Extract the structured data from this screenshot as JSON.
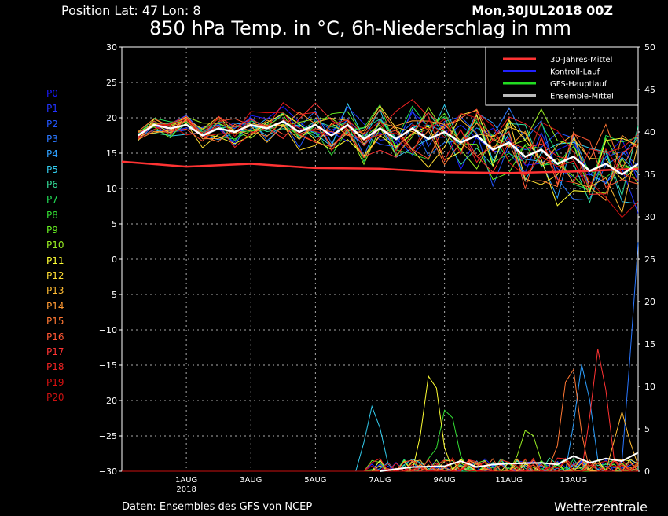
{
  "header": {
    "position": "Position  Lat: 47 Lon: 8",
    "date": "Mon,30JUL2018 00Z",
    "title": "850 hPa Temp. in °C, 6h-Niederschlag in mm"
  },
  "footer": {
    "source": "Daten: Ensembles des GFS von NCEP",
    "brand": "Wetterzentrale"
  },
  "members": [
    {
      "label": "P0",
      "color": "#1a1aff"
    },
    {
      "label": "P1",
      "color": "#2233ff"
    },
    {
      "label": "P2",
      "color": "#2255ff"
    },
    {
      "label": "P3",
      "color": "#2a77ff"
    },
    {
      "label": "P4",
      "color": "#2ea0ff"
    },
    {
      "label": "P5",
      "color": "#33ccee"
    },
    {
      "label": "P6",
      "color": "#33dd99"
    },
    {
      "label": "P7",
      "color": "#22dd55"
    },
    {
      "label": "P8",
      "color": "#33dd33"
    },
    {
      "label": "P9",
      "color": "#66ee22"
    },
    {
      "label": "P10",
      "color": "#99ee22"
    },
    {
      "label": "P11",
      "color": "#ffff33"
    },
    {
      "label": "P12",
      "color": "#ffdd33"
    },
    {
      "label": "P13",
      "color": "#ffbb33"
    },
    {
      "label": "P14",
      "color": "#ff9933"
    },
    {
      "label": "P15",
      "color": "#ff7733"
    },
    {
      "label": "P16",
      "color": "#ff5533"
    },
    {
      "label": "P17",
      "color": "#ff3333"
    },
    {
      "label": "P18",
      "color": "#ee2222"
    },
    {
      "label": "P19",
      "color": "#dd1111"
    },
    {
      "label": "P20",
      "color": "#cc1111"
    }
  ],
  "chart_data": {
    "type": "line",
    "x_ticks": [
      {
        "day": 2,
        "label": "1AUG",
        "sublabel": "2018"
      },
      {
        "day": 4,
        "label": "3AUG"
      },
      {
        "day": 6,
        "label": "5AUG"
      },
      {
        "day": 8,
        "label": "7AUG"
      },
      {
        "day": 10,
        "label": "9AUG"
      },
      {
        "day": 12,
        "label": "11AUG"
      },
      {
        "day": 14,
        "label": "13AUG"
      }
    ],
    "xlim": [
      0,
      16
    ],
    "ylim_left": [
      -30,
      30
    ],
    "ylim_right": [
      0,
      50
    ],
    "yticks_left": [
      -30,
      -25,
      -20,
      -15,
      -10,
      -5,
      0,
      5,
      10,
      15,
      20,
      25,
      30
    ],
    "yticks_right": [
      0,
      5,
      10,
      15,
      20,
      25,
      30,
      35,
      40,
      45,
      50
    ],
    "grid": true,
    "legend_position": "top-right",
    "legend": [
      {
        "label": "30-Jahres-Mittel",
        "color": "#ff3333"
      },
      {
        "label": "Kontroll-Lauf",
        "color": "#2222ff"
      },
      {
        "label": "GFS-Hauptlauf",
        "color": "#22dd22"
      },
      {
        "label": "Ensemble-Mittel",
        "color": "#bbbbbb"
      }
    ],
    "climate_mean": {
      "x": [
        0,
        2,
        4,
        6,
        8,
        10,
        12,
        14,
        16
      ],
      "y": [
        13.8,
        13.1,
        13.5,
        12.9,
        12.8,
        12.3,
        12.2,
        12.4,
        12.8
      ]
    },
    "ensemble_mean_temp": {
      "x": [
        0.5,
        1,
        1.5,
        2,
        2.5,
        3,
        3.5,
        4,
        4.5,
        5,
        5.5,
        6,
        6.5,
        7,
        7.5,
        8,
        8.5,
        9,
        9.5,
        10,
        10.5,
        11,
        11.5,
        12,
        12.5,
        13,
        13.5,
        14,
        14.5,
        15,
        15.5,
        16
      ],
      "y": [
        17.5,
        19.0,
        18.5,
        19.0,
        17.5,
        18.5,
        18.0,
        19.0,
        18.5,
        19.5,
        18.0,
        19.0,
        17.5,
        19.0,
        17.0,
        18.5,
        17.0,
        18.5,
        17.0,
        18.0,
        16.5,
        17.5,
        15.5,
        16.5,
        14.5,
        15.5,
        13.5,
        14.5,
        12.5,
        13.5,
        12.0,
        13.5
      ]
    },
    "ensemble_mean_precip": {
      "x": [
        8,
        9,
        10,
        10.5,
        11,
        11.5,
        12,
        13,
        13.5,
        14,
        14.5,
        15,
        15.5,
        16
      ],
      "y": [
        0,
        0.5,
        0.6,
        1.2,
        0.5,
        0.8,
        0.9,
        1.0,
        0.8,
        1.8,
        1.0,
        1.5,
        1.2,
        2.2
      ]
    },
    "series_note": "Individual member temperature traces (P0–P20) and precipitation traces drawn as spaghetti lines."
  }
}
